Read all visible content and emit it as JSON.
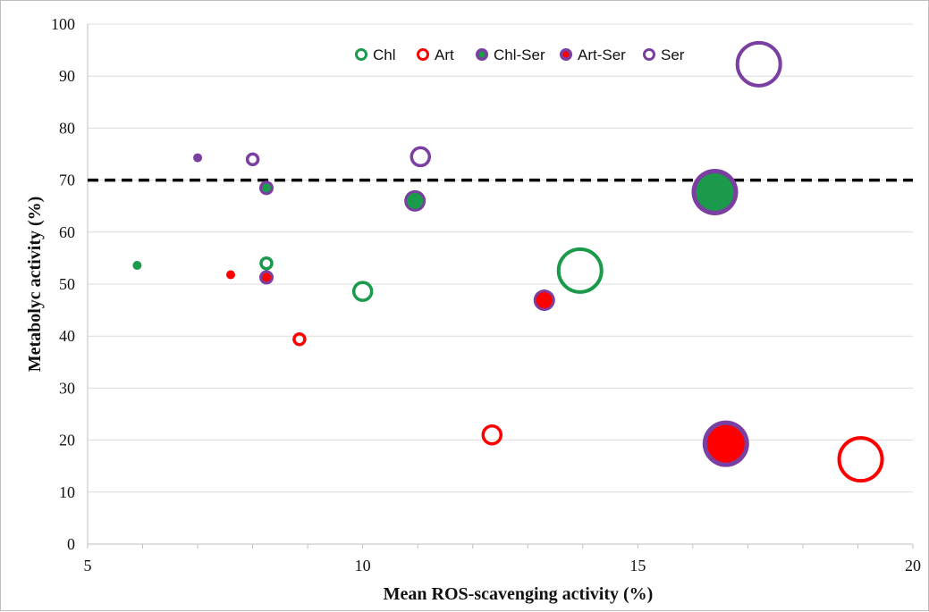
{
  "chart_data": {
    "type": "scatter",
    "xlabel": "Mean ROS-scavenging activity (%)",
    "ylabel": "Metabolyc activity (%)",
    "xlim": [
      5,
      20
    ],
    "ylim": [
      0,
      100
    ],
    "xticks": [
      5,
      10,
      15,
      20
    ],
    "yticks": [
      0,
      10,
      20,
      30,
      40,
      50,
      60,
      70,
      80,
      90,
      100
    ],
    "grid": "horizontal",
    "legend_position": "top-center",
    "reference_line": {
      "y": 70,
      "style": "dashed"
    },
    "colors": {
      "Chl": "#1a9a4a",
      "Art": "#ff0000",
      "Ser": "#7a3fa0"
    },
    "series": [
      {
        "name": "Chl",
        "fill": "none",
        "points": [
          {
            "x": 5.9,
            "y": 53.6,
            "size": 1
          },
          {
            "x": 8.25,
            "y": 54.0,
            "size": 2
          },
          {
            "x": 10.0,
            "y": 48.6,
            "size": 3
          },
          {
            "x": 13.95,
            "y": 52.6,
            "size": 6
          }
        ]
      },
      {
        "name": "Art",
        "fill": "none",
        "points": [
          {
            "x": 7.6,
            "y": 51.8,
            "size": 1
          },
          {
            "x": 8.85,
            "y": 39.4,
            "size": 2
          },
          {
            "x": 12.35,
            "y": 21.0,
            "size": 3
          },
          {
            "x": 19.05,
            "y": 16.3,
            "size": 6
          }
        ]
      },
      {
        "name": "Chl-Ser",
        "fill": "Chl",
        "points": [
          {
            "x": 8.25,
            "y": 68.5,
            "size": 2
          },
          {
            "x": 10.95,
            "y": 66.0,
            "size": 3
          },
          {
            "x": 16.4,
            "y": 67.7,
            "size": 6
          }
        ]
      },
      {
        "name": "Art-Ser",
        "fill": "Art",
        "points": [
          {
            "x": 8.25,
            "y": 51.3,
            "size": 2
          },
          {
            "x": 13.3,
            "y": 46.9,
            "size": 3
          },
          {
            "x": 16.6,
            "y": 19.3,
            "size": 6
          }
        ]
      },
      {
        "name": "Ser",
        "fill": "none",
        "points": [
          {
            "x": 7.0,
            "y": 74.3,
            "size": 1
          },
          {
            "x": 8.0,
            "y": 74.0,
            "size": 2
          },
          {
            "x": 11.05,
            "y": 74.5,
            "size": 3
          },
          {
            "x": 17.2,
            "y": 92.3,
            "size": 6
          }
        ]
      }
    ]
  }
}
